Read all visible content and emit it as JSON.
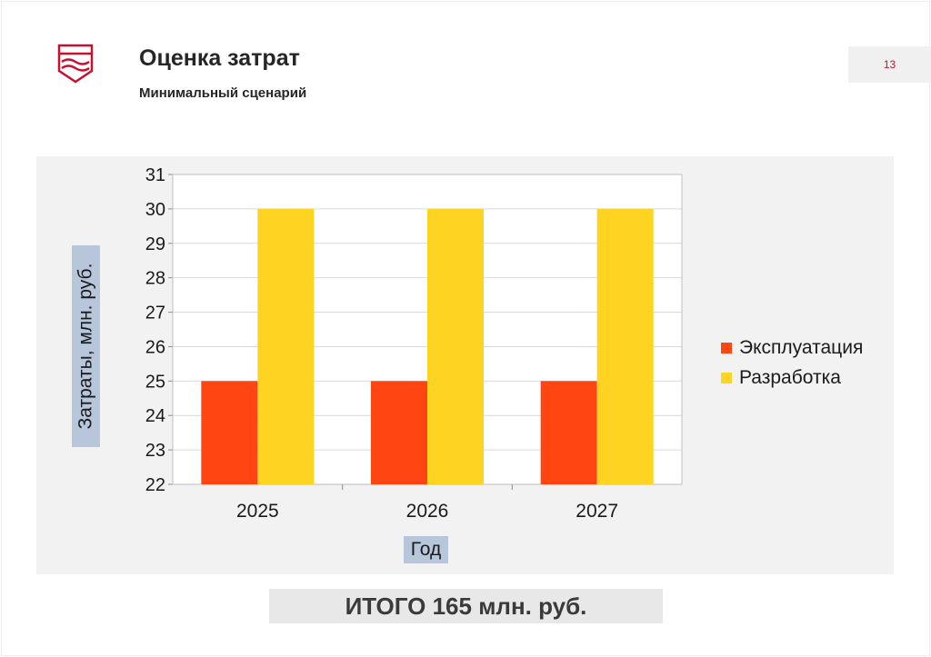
{
  "header": {
    "title": "Оценка затрат",
    "subtitle": "Минимальный сценарий",
    "page_number": "13"
  },
  "footer": {
    "total": "ИТОГО 165 млн. руб."
  },
  "colors": {
    "accent": "#c8102e",
    "series_operation": "#ff4512",
    "series_development": "#ffd321"
  },
  "chart_data": {
    "type": "bar",
    "categories": [
      "2025",
      "2026",
      "2027"
    ],
    "series": [
      {
        "name": "Эксплуатация",
        "values": [
          25,
          25,
          25
        ],
        "color": "#ff4512"
      },
      {
        "name": "Разработка",
        "values": [
          30,
          30,
          30
        ],
        "color": "#ffd321"
      }
    ],
    "title": "",
    "xlabel": "Год",
    "ylabel": "Затраты, млн. руб.",
    "ylim": [
      22,
      31
    ],
    "yticks": [
      22,
      23,
      24,
      25,
      26,
      27,
      28,
      29,
      30,
      31
    ],
    "grid": true,
    "legend_position": "right"
  }
}
